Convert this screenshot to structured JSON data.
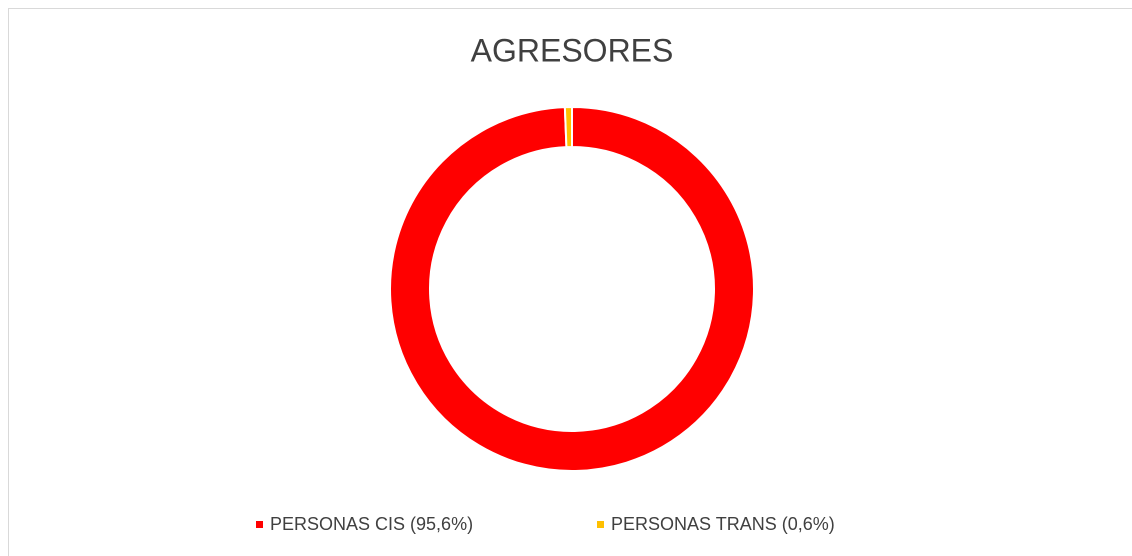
{
  "chart_data": {
    "type": "donut",
    "title": "AGRESORES",
    "categories": [
      "PERSONAS CIS (95,6%)",
      "PERSONAS TRANS (0,6%)"
    ],
    "values": [
      95.6,
      0.6
    ],
    "colors": [
      "#ff0000",
      "#ffc000"
    ]
  }
}
